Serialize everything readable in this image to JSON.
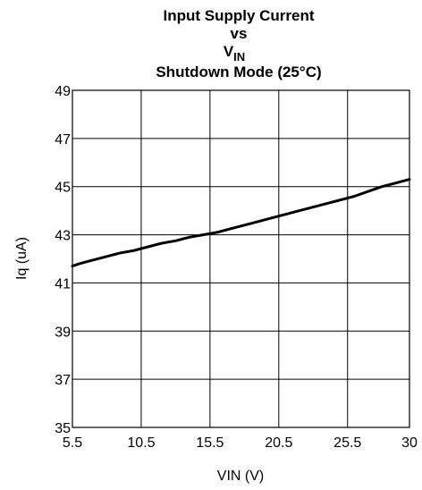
{
  "chart_data": {
    "type": "line",
    "title_lines": [
      "Input Supply Current",
      "vs"
    ],
    "title_vin": {
      "base": "V",
      "subscript": "IN"
    },
    "subtitle": "Shutdown Mode (25°C)",
    "xlabel": "VIN (V)",
    "ylabel": "Iq (uA)",
    "xlim": [
      5.5,
      30
    ],
    "ylim": [
      35,
      49
    ],
    "x_ticks": [
      5.5,
      10.5,
      15.5,
      20.5,
      25.5,
      30
    ],
    "x_tick_labels": [
      "5.5",
      "10.5",
      "15.5",
      "20.5",
      "25.5",
      "30"
    ],
    "y_ticks": [
      35,
      37,
      39,
      41,
      43,
      45,
      47,
      49
    ],
    "y_tick_labels": [
      "35",
      "37",
      "39",
      "41",
      "43",
      "45",
      "47",
      "49"
    ],
    "grid": true,
    "series": [
      {
        "color": "#000000",
        "x": [
          5.5,
          6.0,
          7.0,
          8.0,
          9.0,
          10.0,
          11.0,
          12.0,
          13.0,
          14.0,
          15.0,
          16.0,
          17.0,
          18.0,
          19.0,
          20.0,
          21.0,
          22.0,
          23.0,
          24.0,
          25.0,
          26.0,
          27.0,
          28.0,
          29.0,
          30.0
        ],
        "y": [
          41.7,
          41.8,
          41.95,
          42.1,
          42.25,
          42.35,
          42.5,
          42.65,
          42.75,
          42.9,
          43.0,
          43.1,
          43.25,
          43.4,
          43.55,
          43.7,
          43.85,
          44.0,
          44.15,
          44.3,
          44.45,
          44.6,
          44.8,
          45.0,
          45.15,
          45.3
        ]
      }
    ]
  }
}
